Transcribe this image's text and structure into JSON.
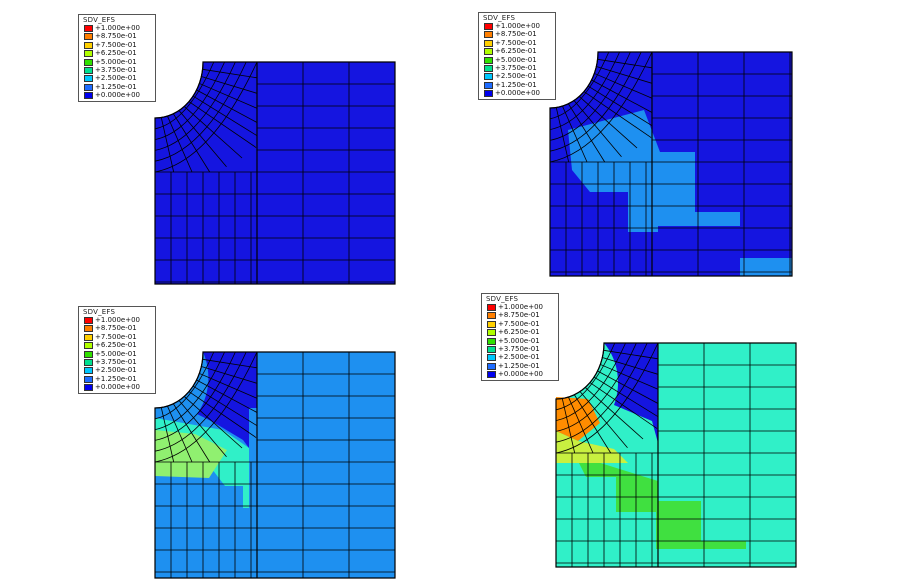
{
  "figure": {
    "legend_title": "SDV_EFS",
    "legend_levels": [
      "+1.000e+00",
      "+8.750e-01",
      "+7.500e-01",
      "+6.250e-01",
      "+5.000e-01",
      "+3.750e-01",
      "+2.500e-01",
      "+1.250e-01",
      "+0.000e+00"
    ],
    "legend_colors": [
      "#ff0000",
      "#ff7f00",
      "#ffd000",
      "#b0ff00",
      "#30e000",
      "#00e090",
      "#00c8ff",
      "#1e6cff",
      "#0000ee"
    ]
  },
  "panels": [
    {
      "id": "top-left",
      "background_color": "#1515e0",
      "regions": []
    },
    {
      "id": "top-right",
      "background_color": "#1515e0",
      "regions": [
        {
          "level": "+1.250e-01",
          "color": "#1e90f0"
        },
        {
          "level": "+2.500e-01",
          "color": "#1e90f0"
        }
      ]
    },
    {
      "id": "bottom-left",
      "background_color": "#1e90f0",
      "regions": [
        {
          "level": "+0.000e+00",
          "color": "#1515e0"
        },
        {
          "level": "+3.750e-01",
          "color": "#30f0c8"
        },
        {
          "level": "+5.000e-01",
          "color": "#90f070"
        }
      ]
    },
    {
      "id": "bottom-right",
      "background_color": "#30f0c8",
      "regions": [
        {
          "level": "+0.000e+00",
          "color": "#1515e0"
        },
        {
          "level": "+5.000e-01",
          "color": "#40e040"
        },
        {
          "level": "+8.750e-01",
          "color": "#ff8c00"
        }
      ]
    }
  ]
}
